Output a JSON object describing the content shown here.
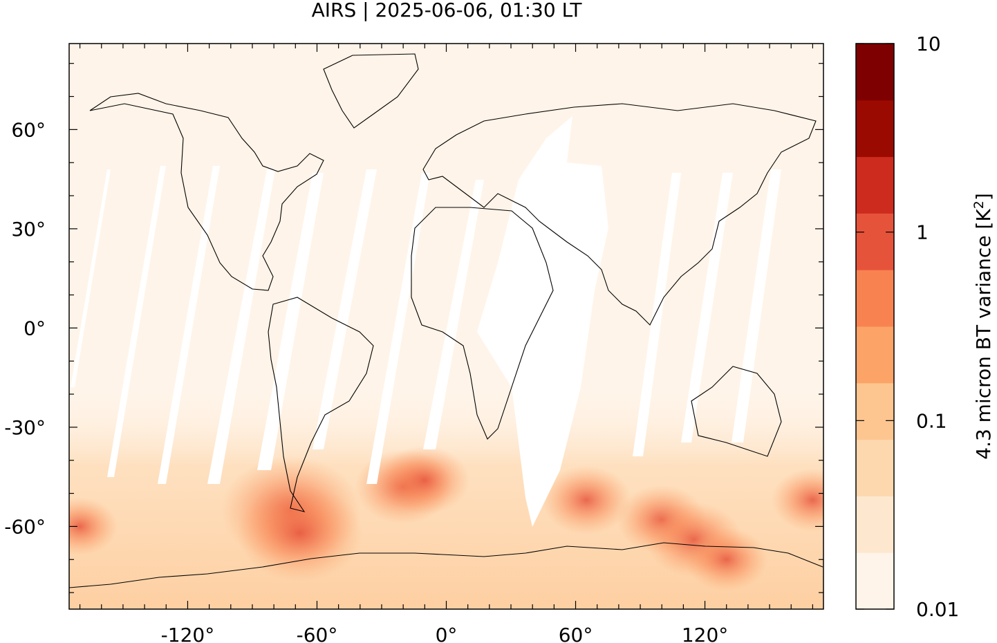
{
  "title": "AIRS | 2025-06-06, 01:30 LT",
  "colorbar": {
    "label_main": "4.3 micron BT variance [K",
    "label_sup": "2",
    "label_end": "]",
    "tick_labels": [
      "0.01",
      "0.1",
      "1",
      "10"
    ],
    "levels": [
      0.01,
      0.02,
      0.04,
      0.07,
      0.15,
      0.3,
      0.7,
      1.5,
      3,
      5,
      10
    ],
    "colors": [
      "#fff4e9",
      "#fde8cf",
      "#fdd8ae",
      "#fdc690",
      "#fca368",
      "#f88351",
      "#e6533b",
      "#cd2b1e",
      "#9b0a00",
      "#7f0000"
    ],
    "scale": "log"
  },
  "chart_data": {
    "type": "heatmap",
    "projection": "equirectangular",
    "title": "AIRS | 2025-06-06, 01:30 LT",
    "x_ticks": [
      {
        "value": -120,
        "label": "-120°"
      },
      {
        "value": -60,
        "label": "-60°"
      },
      {
        "value": 0,
        "label": "0°"
      },
      {
        "value": 60,
        "label": "60°"
      },
      {
        "value": 120,
        "label": "120°"
      }
    ],
    "y_ticks": [
      {
        "value": 60,
        "label": "60°"
      },
      {
        "value": 30,
        "label": "30°"
      },
      {
        "value": 0,
        "label": "0°"
      },
      {
        "value": -30,
        "label": "-30°"
      },
      {
        "value": -60,
        "label": "-60°"
      }
    ],
    "xlim": [
      -175,
      175
    ],
    "ylim": [
      -85,
      86
    ],
    "background_value": 0.012,
    "hotspots": [
      {
        "lon": -72,
        "lat": -55,
        "value": 1.2
      },
      {
        "lon": -68,
        "lat": -62,
        "value": 1.0
      },
      {
        "lon": -20,
        "lat": -48,
        "value": 0.6
      },
      {
        "lon": -10,
        "lat": -46,
        "value": 0.5
      },
      {
        "lon": 65,
        "lat": -52,
        "value": 0.5
      },
      {
        "lon": 100,
        "lat": -58,
        "value": 0.5
      },
      {
        "lon": 115,
        "lat": -64,
        "value": 0.6
      },
      {
        "lon": 130,
        "lat": -70,
        "value": 0.4
      },
      {
        "lon": 170,
        "lat": -52,
        "value": 0.4
      },
      {
        "lon": -170,
        "lat": -60,
        "value": 0.3
      }
    ],
    "band_values": [
      {
        "lat_min": -85,
        "lat_max": -40,
        "value": 0.1
      },
      {
        "lat_min": -40,
        "lat_max": 86,
        "value": 0.015
      }
    ]
  }
}
